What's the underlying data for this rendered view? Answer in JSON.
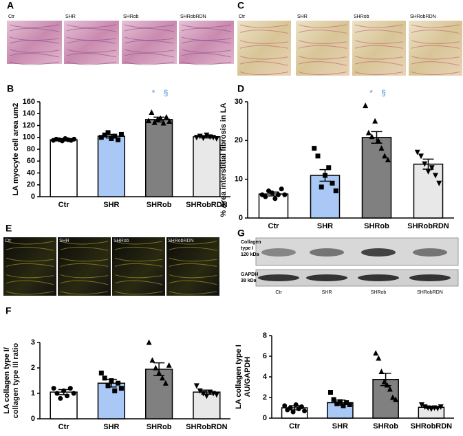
{
  "panels": {
    "A": {
      "letter": "A",
      "labels": [
        "Ctr",
        "SHR",
        "SHRob",
        "SHRobRDN"
      ]
    },
    "C": {
      "letter": "C",
      "labels": [
        "Ctr",
        "SHR",
        "SHRob",
        "SHRobRDN"
      ]
    },
    "E": {
      "letter": "E",
      "labels": [
        "Ctr",
        "SHR",
        "SHRob",
        "SHRobRDN"
      ]
    },
    "G": {
      "letter": "G",
      "blot_labels": [
        [
          "Collagen",
          "type I",
          "120 kDa"
        ],
        [
          "GAPDH",
          "38 kDa"
        ]
      ],
      "lanes": [
        "Ctr",
        "SHR",
        "SHRob",
        "SHRobRDN"
      ]
    },
    "B": {
      "letter": "B"
    },
    "D": {
      "letter": "D"
    },
    "F": {
      "letter": "F"
    }
  },
  "chart_data": [
    {
      "type": "bar",
      "y_label": [
        "LA  myocyte cell area um2"
      ],
      "categories": [
        "Ctr",
        "SHR",
        "SHRob",
        "SHRobRDN"
      ],
      "values": [
        96,
        102,
        130,
        101
      ],
      "errors": [
        2,
        3,
        4,
        2
      ],
      "colors": [
        "#ffffff",
        "#a9c8f5",
        "#808080",
        "#e8e8e8"
      ],
      "markers": [
        "circle",
        "square",
        "triangle",
        "down-triangle"
      ],
      "points": [
        [
          95,
          97,
          96,
          94,
          98,
          96,
          95,
          97
        ],
        [
          100,
          104,
          108,
          98,
          102,
          96,
          105
        ],
        [
          128,
          142,
          125,
          130,
          132,
          124,
          134,
          127
        ],
        [
          100,
          102,
          99,
          104,
          101,
          100,
          98
        ]
      ],
      "annotations": [
        "*",
        "§"
      ],
      "ylim": [
        0,
        160
      ],
      "yticks": [
        0,
        20,
        40,
        60,
        80,
        100,
        120,
        140,
        160
      ]
    },
    {
      "type": "bar",
      "y_label": [
        "% Area interstitial fibrosis in LA"
      ],
      "categories": [
        "Ctr",
        "SHR",
        "SHRob",
        "SHRobRDN"
      ],
      "values": [
        6.2,
        11,
        20.8,
        13.9
      ],
      "errors": [
        0.5,
        1.5,
        1.5,
        1.3
      ],
      "colors": [
        "#ffffff",
        "#a9c8f5",
        "#808080",
        "#e8e8e8"
      ],
      "markers": [
        "circle",
        "square",
        "triangle",
        "down-triangle"
      ],
      "points": [
        [
          6,
          5.5,
          7,
          6.5,
          5,
          6,
          7.5,
          6
        ],
        [
          18,
          16,
          8,
          11,
          13,
          9,
          7
        ],
        [
          29,
          22,
          21,
          25,
          20,
          18,
          16,
          15
        ],
        [
          17,
          16,
          14,
          12,
          13,
          11,
          9
        ]
      ],
      "annotations": [
        "*",
        "§"
      ],
      "ylim": [
        0,
        30
      ],
      "yticks": [
        0,
        10,
        20,
        30
      ]
    },
    {
      "type": "bar",
      "y_label": [
        "LA collagen type I/",
        "collagen type III ratio"
      ],
      "categories": [
        "Ctr",
        "SHR",
        "SHRob",
        "SHRobRDN"
      ],
      "values": [
        1.05,
        1.4,
        1.95,
        1.05
      ],
      "errors": [
        0.1,
        0.15,
        0.25,
        0.08
      ],
      "colors": [
        "#ffffff",
        "#a9c8f5",
        "#808080",
        "#e8e8e8"
      ],
      "markers": [
        "circle",
        "square",
        "triangle",
        "down-triangle"
      ],
      "points": [
        [
          1.2,
          1.0,
          0.8,
          1.1,
          0.9,
          1.2,
          1.0
        ],
        [
          1.8,
          1.6,
          1.3,
          1.5,
          1.1,
          1.4,
          1.2
        ],
        [
          3.0,
          2.3,
          2.0,
          1.8,
          1.6,
          1.4,
          2.1
        ],
        [
          1.3,
          1.1,
          1.0,
          0.9,
          1.05,
          1.0,
          0.95
        ]
      ],
      "ylim": [
        0,
        3
      ],
      "yticks": [
        0,
        1,
        2,
        3
      ]
    },
    {
      "type": "bar",
      "y_label": [
        "LA collagen type I",
        "AU/GAPDH"
      ],
      "categories": [
        "Ctr",
        "SHR",
        "SHRob",
        "SHRobRDN"
      ],
      "values": [
        1.0,
        1.5,
        3.75,
        1.05
      ],
      "errors": [
        0.2,
        0.25,
        0.6,
        0.1
      ],
      "colors": [
        "#ffffff",
        "#a9c8f5",
        "#808080",
        "#e8e8e8"
      ],
      "markers": [
        "circle",
        "square",
        "triangle",
        "down-triangle"
      ],
      "points": [
        [
          1.2,
          0.8,
          1.0,
          0.6,
          1.3,
          0.9,
          1.1,
          0.7
        ],
        [
          2.5,
          1.8,
          1.4,
          1.6,
          1.2,
          1.5,
          1.3
        ],
        [
          6.3,
          5.8,
          4.5,
          3.5,
          3.2,
          2.8,
          2.0,
          1.8
        ],
        [
          1.3,
          1.1,
          1.0,
          0.9,
          1.0,
          0.95,
          1.1
        ]
      ],
      "ylim": [
        0,
        8
      ],
      "yticks": [
        0,
        2,
        4,
        6,
        8
      ]
    }
  ]
}
